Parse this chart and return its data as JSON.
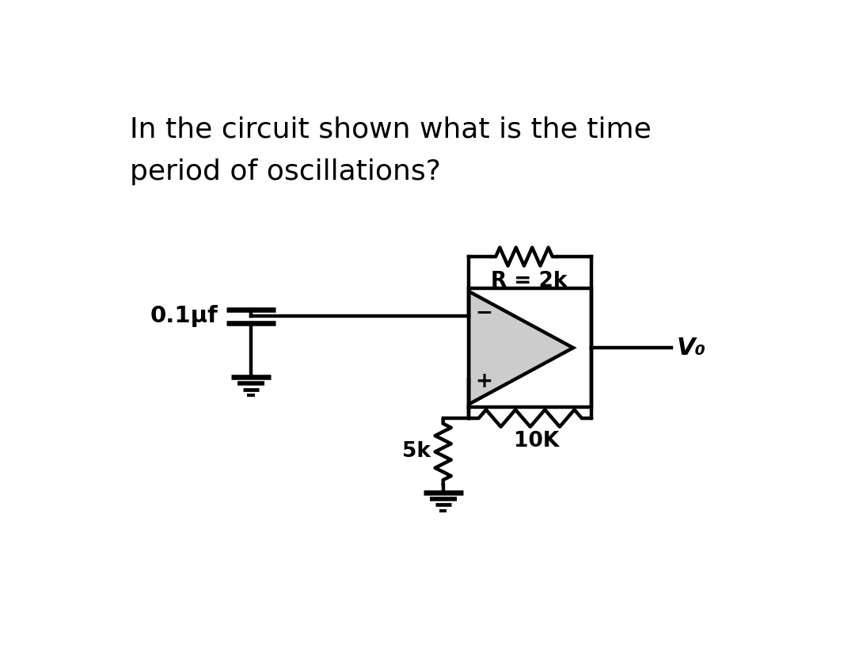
{
  "title_line1": "In the circuit shown what is the time",
  "title_line2": "period of oscillations?",
  "title_fontsize": 26,
  "bg_color": "#ffffff",
  "circuit_color": "#000000",
  "opamp_fill": "#cccccc",
  "label_capacitor": "0.1μf",
  "label_r_feedback": "R = 2k",
  "label_r_bottom": "5k",
  "label_r_plus": "10K",
  "label_vo": "V₀",
  "lw": 3.2,
  "fig_w": 10.8,
  "fig_h": 8.46
}
